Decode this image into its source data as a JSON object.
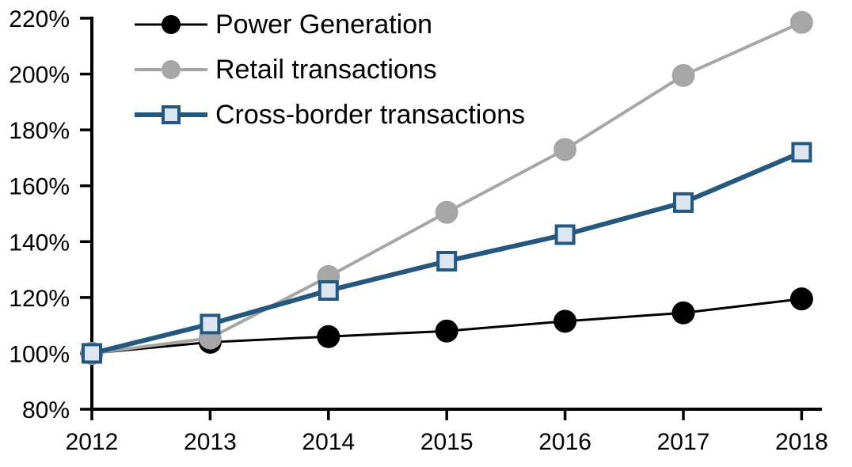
{
  "chart_data": {
    "type": "line",
    "title": "",
    "categories": [
      "2012",
      "2013",
      "2014",
      "2015",
      "2016",
      "2017",
      "2018"
    ],
    "series": [
      {
        "name": "Power Generation",
        "values": [
          100,
          104,
          106,
          108,
          111.5,
          114.5,
          119.5
        ],
        "color": "#000000",
        "marker": "circle",
        "marker_fill": "#000000",
        "line_width": 3
      },
      {
        "name": "Retail transactions",
        "values": [
          100,
          105.5,
          127.5,
          150.5,
          173,
          199.5,
          218.5
        ],
        "color": "#a6a6a6",
        "marker": "circle",
        "marker_fill": "#a6a6a6",
        "line_width": 4
      },
      {
        "name": "Cross-border transactions",
        "values": [
          100,
          110.5,
          122.5,
          133,
          142.5,
          154,
          172
        ],
        "color": "#24587f",
        "marker": "square",
        "marker_fill": "#dbe6f2",
        "line_width": 6
      }
    ],
    "y_axis": {
      "min": 80,
      "max": 220,
      "tick_step": 20,
      "ticks": [
        {
          "value": 220,
          "label": "220%"
        },
        {
          "value": 200,
          "label": "200%"
        },
        {
          "value": 180,
          "label": "180%"
        },
        {
          "value": 160,
          "label": "160%"
        },
        {
          "value": 140,
          "label": "140%"
        },
        {
          "value": 120,
          "label": "120%"
        },
        {
          "value": 100,
          "label": "100%"
        },
        {
          "value": 80,
          "label": "80%"
        }
      ]
    },
    "x_axis": {
      "tick_labels": [
        "2012",
        "2013",
        "2014",
        "2015",
        "2016",
        "2017",
        "2018"
      ]
    },
    "grid": false,
    "legend_position": "top-left-inside",
    "axis_color": "#000000",
    "background_color": "#ffffff"
  }
}
